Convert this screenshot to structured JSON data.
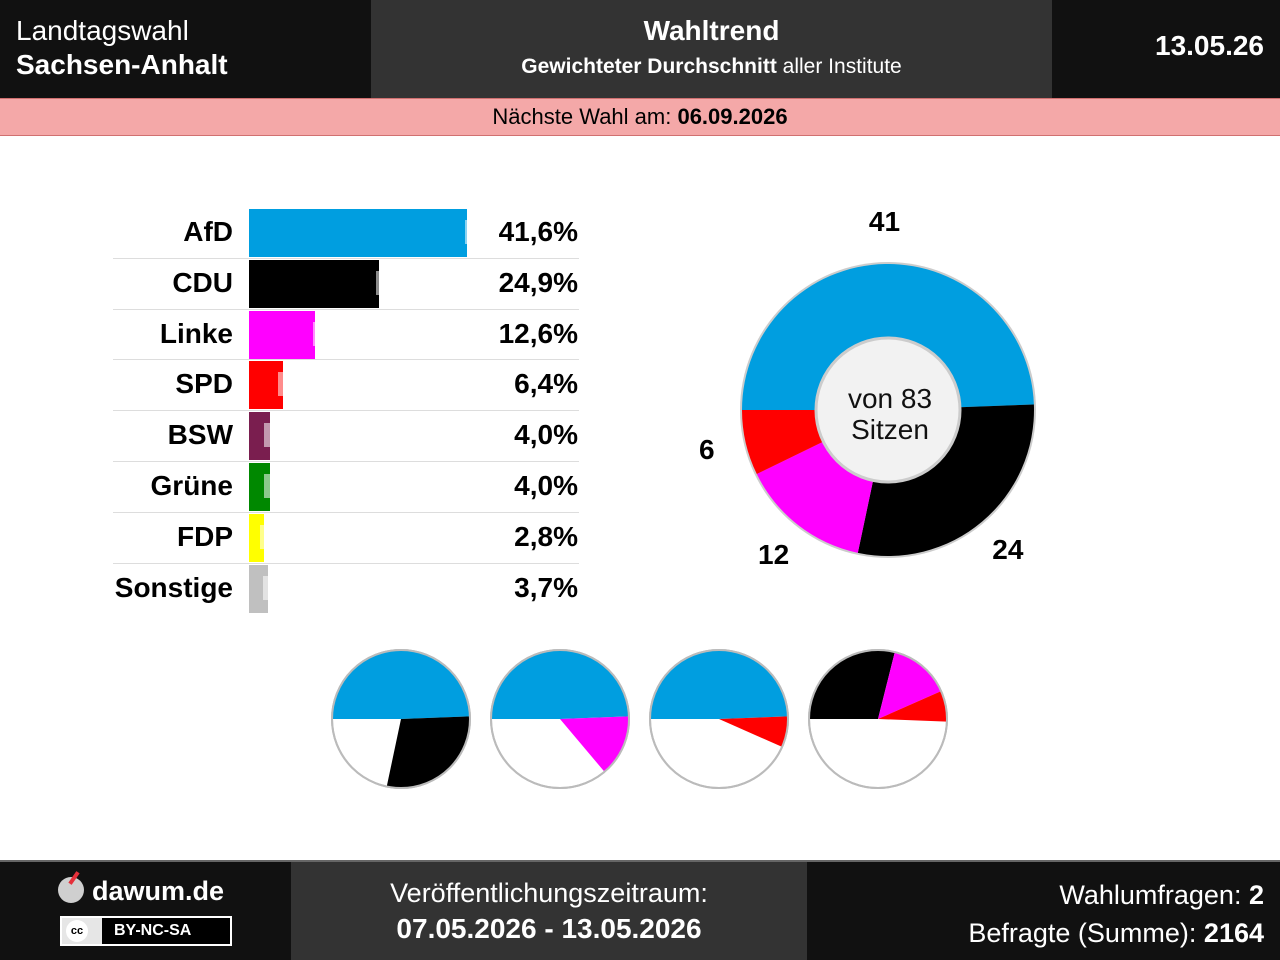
{
  "header": {
    "election_line1": "Landtagswahl",
    "election_line2": "Sachsen-Anhalt",
    "title": "Wahltrend",
    "subtitle_bold": "Gewichteter Durchschnitt",
    "subtitle_rest": " aller Institute",
    "date": "13.05.26"
  },
  "next_election": {
    "label": "Nächste Wahl am: ",
    "date": "06.09.2026"
  },
  "chart_data": [
    {
      "type": "bar",
      "orientation": "horizontal",
      "categories": [
        "AfD",
        "CDU",
        "Linke",
        "SPD",
        "BSW",
        "Grüne",
        "FDP",
        "Sonstige"
      ],
      "values": [
        41.6,
        24.9,
        12.6,
        6.4,
        4.0,
        4.0,
        2.8,
        3.7
      ],
      "value_labels": [
        "41,6%",
        "24,9%",
        "12,6%",
        "6,4%",
        "4,0%",
        "4,0%",
        "2,8%",
        "3,7%"
      ],
      "previous_markers": [
        43.5,
        26.5,
        14.5,
        7.8,
        5.2,
        5.2,
        4.3,
        5.0
      ],
      "colors": [
        "#009ee0",
        "#000000",
        "#ff00ff",
        "#ff0000",
        "#7a1e4f",
        "#008800",
        "#ffff00",
        "#c0c0c0"
      ],
      "xlim": [
        0,
        42
      ]
    },
    {
      "type": "pie",
      "subtype": "donut",
      "categories": [
        "AfD",
        "CDU",
        "Linke",
        "SPD"
      ],
      "values": [
        41,
        24,
        12,
        6
      ],
      "value_labels": [
        "41",
        "24",
        "12",
        "6"
      ],
      "colors": [
        "#009ee0",
        "#000000",
        "#ff00ff",
        "#ff0000"
      ],
      "center_label_line1": "von 83",
      "center_label_line2": "Sitzen",
      "total": 83
    },
    {
      "type": "pie",
      "subtype": "coalition-half-pies",
      "total": 83,
      "coalitions": [
        {
          "parties": [
            "AfD"
          ],
          "seats": [
            41
          ],
          "colors": [
            "#009ee0"
          ],
          "others": [
            "CDU"
          ],
          "others_seats": [
            24
          ],
          "others_colors": [
            "#000000"
          ]
        },
        {
          "parties": [
            "AfD"
          ],
          "seats": [
            41
          ],
          "colors": [
            "#009ee0"
          ],
          "others": [
            "Linke"
          ],
          "others_seats": [
            12
          ],
          "others_colors": [
            "#ff00ff"
          ]
        },
        {
          "parties": [
            "AfD"
          ],
          "seats": [
            41
          ],
          "colors": [
            "#009ee0"
          ],
          "others": [
            "SPD"
          ],
          "others_seats": [
            6
          ],
          "others_colors": [
            "#ff0000"
          ]
        },
        {
          "parties": [
            "CDU",
            "Linke",
            "SPD"
          ],
          "seats": [
            24,
            12,
            6
          ],
          "colors": [
            "#000000",
            "#ff00ff",
            "#ff0000"
          ],
          "others": [],
          "others_seats": [],
          "others_colors": []
        }
      ]
    }
  ],
  "footer": {
    "brand": "dawum.de",
    "license": "BY-NC-SA",
    "period_label": "Veröffentlichungszeitraum:",
    "period_value": "07.05.2026 - 13.05.2026",
    "polls_label": "Wahlumfragen: ",
    "polls_value": "2",
    "respondents_label": "Befragte (Summe): ",
    "respondents_value": "2164"
  }
}
